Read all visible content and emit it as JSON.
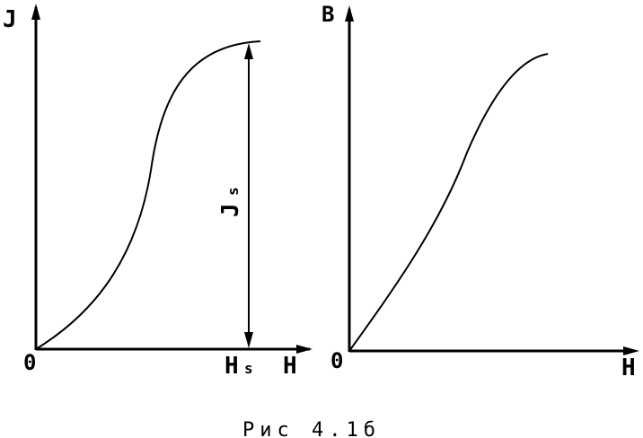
{
  "left_plot": {
    "y_axis_label": "J",
    "x_axis_label": "H",
    "origin_label": "0",
    "hs_label_main": "H",
    "hs_label_sub": "s",
    "js_label_main": "J",
    "js_label_sub": "s"
  },
  "right_plot": {
    "y_axis_label": "B",
    "x_axis_label": "H",
    "origin_label": "0"
  },
  "caption": "Рис 4.1б"
}
